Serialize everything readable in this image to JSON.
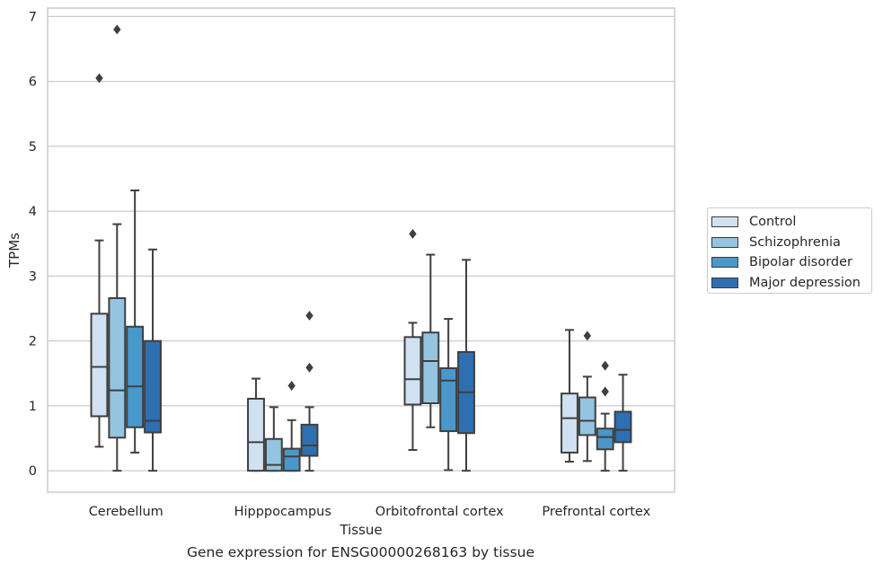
{
  "caption": "Gene expression for ENSG00000268163 by tissue",
  "legend": {
    "items": [
      {
        "label": "Control",
        "color": "#d0e1f2"
      },
      {
        "label": "Schizophrenia",
        "color": "#94c4df"
      },
      {
        "label": "Bipolar disorder",
        "color": "#4a98c9"
      },
      {
        "label": "Major depression",
        "color": "#2e6fb1"
      }
    ]
  },
  "chart_data": {
    "type": "box",
    "title": "",
    "xlabel": "Tissue",
    "ylabel": "TPMs",
    "ylim": [
      -0.33,
      7.13
    ],
    "yticks": [
      0,
      1,
      2,
      3,
      4,
      5,
      6,
      7
    ],
    "grid": "horizontal",
    "legend_position": "right",
    "categories": [
      "Cerebellum",
      "Hipppocampus",
      "Orbitofrontal cortex",
      "Prefrontal cortex"
    ],
    "series": [
      {
        "name": "Control",
        "color": "#d0e1f2",
        "boxes": [
          {
            "whislo": 0.37,
            "q1": 0.84,
            "med": 1.6,
            "q3": 2.42,
            "whishi": 3.55,
            "fliers": [
              6.05
            ]
          },
          {
            "whislo": 0.0,
            "q1": 0.0,
            "med": 0.44,
            "q3": 1.11,
            "whishi": 1.42,
            "fliers": []
          },
          {
            "whislo": 0.32,
            "q1": 1.02,
            "med": 1.41,
            "q3": 2.06,
            "whishi": 2.28,
            "fliers": [
              3.65
            ]
          },
          {
            "whislo": 0.14,
            "q1": 0.28,
            "med": 0.81,
            "q3": 1.19,
            "whishi": 2.17,
            "fliers": []
          }
        ]
      },
      {
        "name": "Schizophrenia",
        "color": "#94c4df",
        "boxes": [
          {
            "whislo": 0.0,
            "q1": 0.51,
            "med": 1.24,
            "q3": 2.66,
            "whishi": 3.8,
            "fliers": [
              6.8
            ]
          },
          {
            "whislo": 0.0,
            "q1": 0.0,
            "med": 0.09,
            "q3": 0.49,
            "whishi": 0.98,
            "fliers": []
          },
          {
            "whislo": 0.67,
            "q1": 1.04,
            "med": 1.69,
            "q3": 2.13,
            "whishi": 3.33,
            "fliers": []
          },
          {
            "whislo": 0.15,
            "q1": 0.55,
            "med": 0.77,
            "q3": 1.13,
            "whishi": 1.45,
            "fliers": [
              2.08
            ]
          }
        ]
      },
      {
        "name": "Bipolar disorder",
        "color": "#4a98c9",
        "boxes": [
          {
            "whislo": 0.28,
            "q1": 0.67,
            "med": 1.3,
            "q3": 2.22,
            "whishi": 4.32,
            "fliers": []
          },
          {
            "whislo": 0.0,
            "q1": 0.0,
            "med": 0.22,
            "q3": 0.34,
            "whishi": 0.78,
            "fliers": [
              1.31
            ]
          },
          {
            "whislo": 0.01,
            "q1": 0.61,
            "med": 1.39,
            "q3": 1.58,
            "whishi": 2.34,
            "fliers": []
          },
          {
            "whislo": 0.0,
            "q1": 0.33,
            "med": 0.52,
            "q3": 0.65,
            "whishi": 0.88,
            "fliers": [
              1.22,
              1.62
            ]
          }
        ]
      },
      {
        "name": "Major depression",
        "color": "#2e6fb1",
        "boxes": [
          {
            "whislo": 0.0,
            "q1": 0.59,
            "med": 0.77,
            "q3": 2.0,
            "whishi": 3.41,
            "fliers": []
          },
          {
            "whislo": 0.0,
            "q1": 0.23,
            "med": 0.39,
            "q3": 0.71,
            "whishi": 0.98,
            "fliers": [
              1.59,
              2.39
            ]
          },
          {
            "whislo": 0.0,
            "q1": 0.58,
            "med": 1.21,
            "q3": 1.83,
            "whishi": 3.25,
            "fliers": []
          },
          {
            "whislo": 0.0,
            "q1": 0.44,
            "med": 0.63,
            "q3": 0.91,
            "whishi": 1.48,
            "fliers": []
          }
        ]
      }
    ]
  }
}
